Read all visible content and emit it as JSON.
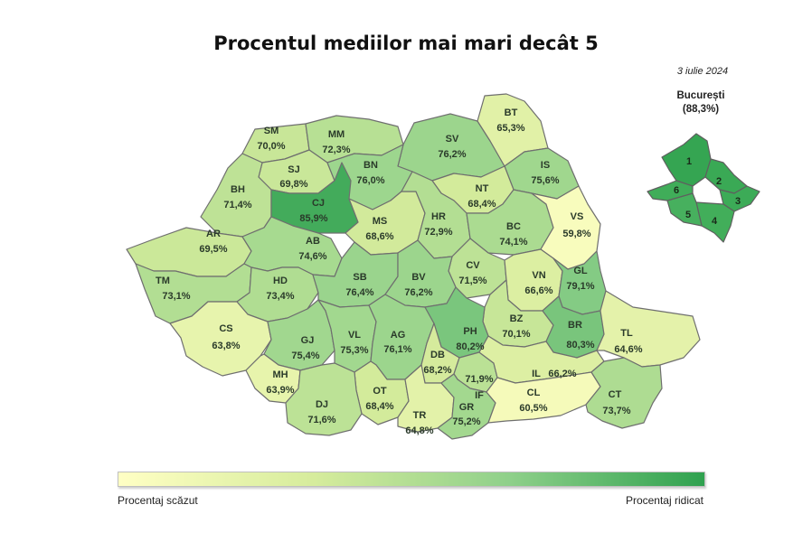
{
  "title": "Procentul mediilor mai mari decât 5",
  "date": "3 iulie 2024",
  "bucharest": {
    "name": "București",
    "value": "(88,3%)",
    "sectors": [
      "1",
      "2",
      "3",
      "4",
      "5",
      "6"
    ]
  },
  "legend": {
    "low": "Procentaj scăzut",
    "high": "Procentaj ridicat",
    "color_low": "#ffffc4",
    "color_high": "#2fa14f"
  },
  "counties": [
    {
      "code": "SM",
      "value": "70,0%",
      "pct": 70.0
    },
    {
      "code": "MM",
      "value": "72,3%",
      "pct": 72.3
    },
    {
      "code": "SV",
      "value": "76,2%",
      "pct": 76.2
    },
    {
      "code": "BT",
      "value": "65,3%",
      "pct": 65.3
    },
    {
      "code": "SJ",
      "value": "69,8%",
      "pct": 69.8
    },
    {
      "code": "BN",
      "value": "76,0%",
      "pct": 76.0
    },
    {
      "code": "IS",
      "value": "75,6%",
      "pct": 75.6
    },
    {
      "code": "BH",
      "value": "71,4%",
      "pct": 71.4
    },
    {
      "code": "CJ",
      "value": "85,9%",
      "pct": 85.9
    },
    {
      "code": "NT",
      "value": "68,4%",
      "pct": 68.4
    },
    {
      "code": "MS",
      "value": "68,6%",
      "pct": 68.6
    },
    {
      "code": "HR",
      "value": "72,9%",
      "pct": 72.9
    },
    {
      "code": "BC",
      "value": "74,1%",
      "pct": 74.1
    },
    {
      "code": "VS",
      "value": "59,8%",
      "pct": 59.8
    },
    {
      "code": "AR",
      "value": "69,5%",
      "pct": 69.5
    },
    {
      "code": "AB",
      "value": "74,6%",
      "pct": 74.6
    },
    {
      "code": "CV",
      "value": "71,5%",
      "pct": 71.5
    },
    {
      "code": "VN",
      "value": "66,6%",
      "pct": 66.6
    },
    {
      "code": "GL",
      "value": "79,1%",
      "pct": 79.1
    },
    {
      "code": "TM",
      "value": "73,1%",
      "pct": 73.1
    },
    {
      "code": "HD",
      "value": "73,4%",
      "pct": 73.4
    },
    {
      "code": "SB",
      "value": "76,4%",
      "pct": 76.4
    },
    {
      "code": "BV",
      "value": "76,2%",
      "pct": 76.2
    },
    {
      "code": "BZ",
      "value": "70,1%",
      "pct": 70.1
    },
    {
      "code": "BR",
      "value": "80,3%",
      "pct": 80.3
    },
    {
      "code": "TL",
      "value": "64,6%",
      "pct": 64.6
    },
    {
      "code": "CS",
      "value": "63,8%",
      "pct": 63.8
    },
    {
      "code": "GJ",
      "value": "75,4%",
      "pct": 75.4
    },
    {
      "code": "VL",
      "value": "75,3%",
      "pct": 75.3
    },
    {
      "code": "AG",
      "value": "76,1%",
      "pct": 76.1
    },
    {
      "code": "PH",
      "value": "80,2%",
      "pct": 80.2
    },
    {
      "code": "DB",
      "value": "68,2%",
      "pct": 68.2
    },
    {
      "code": "IF",
      "value": "71,9%",
      "pct": 71.9
    },
    {
      "code": "IL",
      "value": "66,2%",
      "pct": 66.2
    },
    {
      "code": "MH",
      "value": "63,9%",
      "pct": 63.9
    },
    {
      "code": "OT",
      "value": "68,4%",
      "pct": 68.4
    },
    {
      "code": "DJ",
      "value": "71,6%",
      "pct": 71.6
    },
    {
      "code": "TR",
      "value": "64,8%",
      "pct": 64.8
    },
    {
      "code": "GR",
      "value": "75,2%",
      "pct": 75.2
    },
    {
      "code": "CL",
      "value": "60,5%",
      "pct": 60.5
    },
    {
      "code": "CT",
      "value": "73,7%",
      "pct": 73.7
    }
  ]
}
